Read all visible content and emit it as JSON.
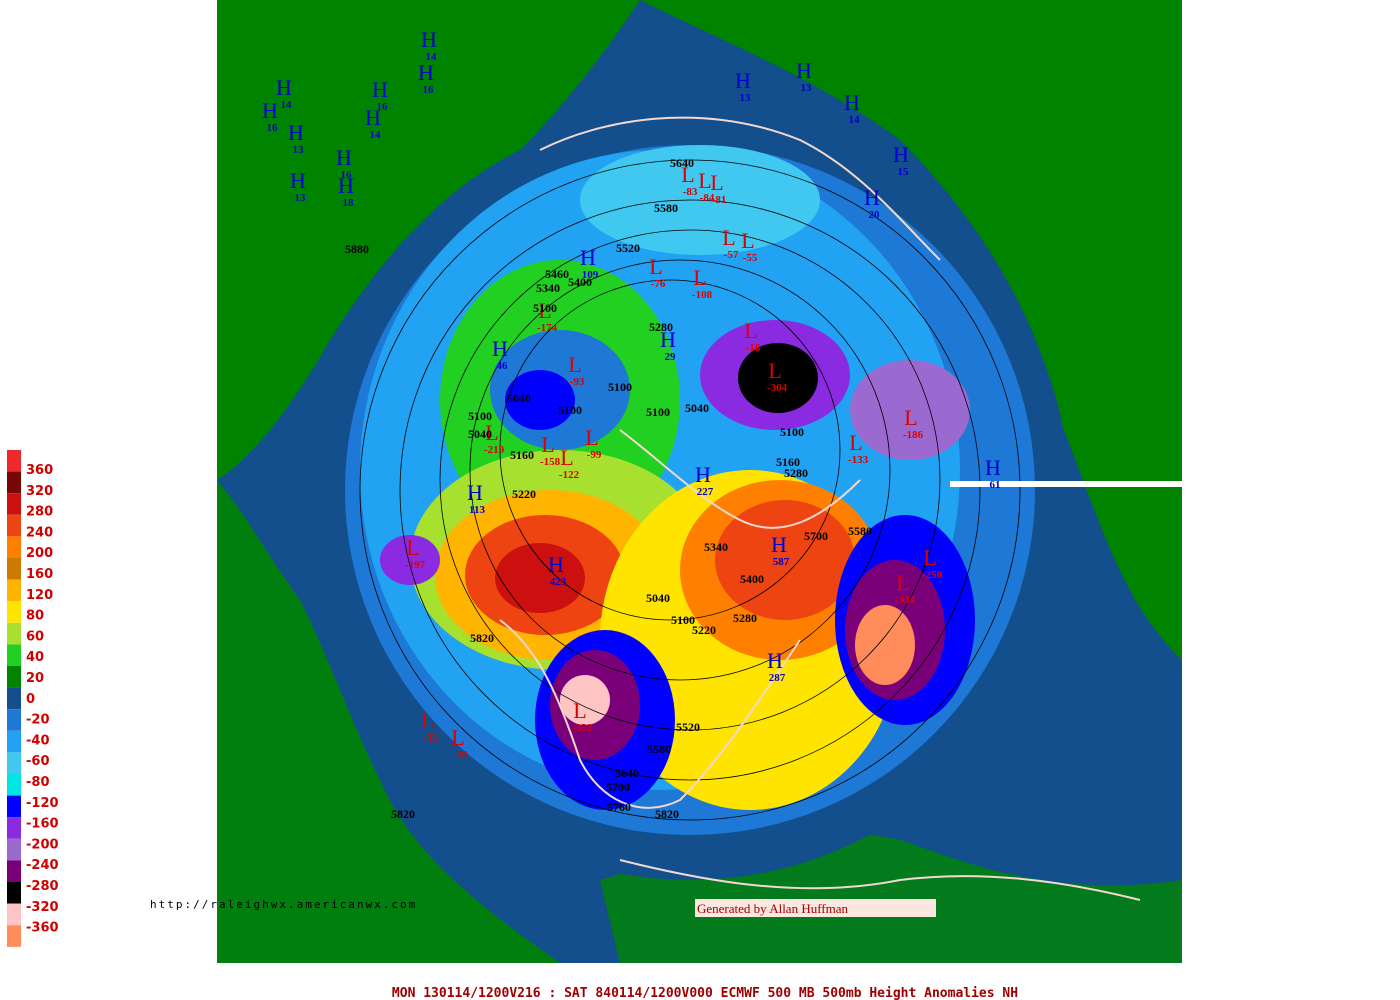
{
  "legend": [
    {
      "value": 360,
      "color": "#ee2a2a"
    },
    {
      "value": 320,
      "color": "#780808"
    },
    {
      "value": 280,
      "color": "#cc1010"
    },
    {
      "value": 240,
      "color": "#ee4412"
    },
    {
      "value": 200,
      "color": "#ff8000"
    },
    {
      "value": 160,
      "color": "#cc7a00"
    },
    {
      "value": 120,
      "color": "#ffb400"
    },
    {
      "value": 80,
      "color": "#ffe400"
    },
    {
      "value": 60,
      "color": "#a8e030"
    },
    {
      "value": 40,
      "color": "#22d022"
    },
    {
      "value": 20,
      "color": "#008400"
    },
    {
      "value": 0,
      "color": "#124f8c"
    },
    {
      "value": -20,
      "color": "#1e78d6"
    },
    {
      "value": -40,
      "color": "#22a2f2"
    },
    {
      "value": -60,
      "color": "#40c8f0"
    },
    {
      "value": -80,
      "color": "#00e4e4"
    },
    {
      "value": -120,
      "color": "#0000ff"
    },
    {
      "value": -160,
      "color": "#8a2be2"
    },
    {
      "value": -200,
      "color": "#9a6ad0"
    },
    {
      "value": -240,
      "color": "#7a007a"
    },
    {
      "value": -280,
      "color": "#000000"
    },
    {
      "value": -320,
      "color": "#ffc4c4"
    },
    {
      "value": -360,
      "color": "#ff8c5a"
    }
  ],
  "highs": [
    14,
    16,
    13,
    16,
    14,
    16,
    13,
    18,
    14,
    16,
    13,
    13,
    14,
    15,
    20,
    109,
    29,
    46,
    113,
    227,
    61,
    423,
    587,
    287
  ],
  "high_letter": "H",
  "lows": [
    -83,
    -84,
    -81,
    -57,
    -55,
    -76,
    -108,
    -174,
    -93,
    -158,
    -122,
    -99,
    -219,
    -18,
    -304,
    -133,
    -186,
    -197,
    -250,
    -334,
    -352,
    -33,
    -38
  ],
  "low_letter": "L",
  "contours": [
    5640,
    5580,
    5520,
    5460,
    5400,
    5340,
    5100,
    5280,
    5100,
    5040,
    5100,
    5100,
    5040,
    5160,
    5220,
    5100,
    5040,
    4980,
    5100,
    5160,
    5280,
    5880,
    5340,
    5700,
    5400,
    5040,
    5100,
    5280,
    5220,
    5820,
    5520,
    5580,
    5640,
    5700,
    5760,
    5820,
    5820,
    5580
  ],
  "url": "http://raleighwx.americanwx.com",
  "credit": "Generated by Allan Huffman",
  "footer": "MON 130114/1200V216 : SAT 840114/1200V000  ECMWF  500 MB 500mb Height Anomalies NH"
}
